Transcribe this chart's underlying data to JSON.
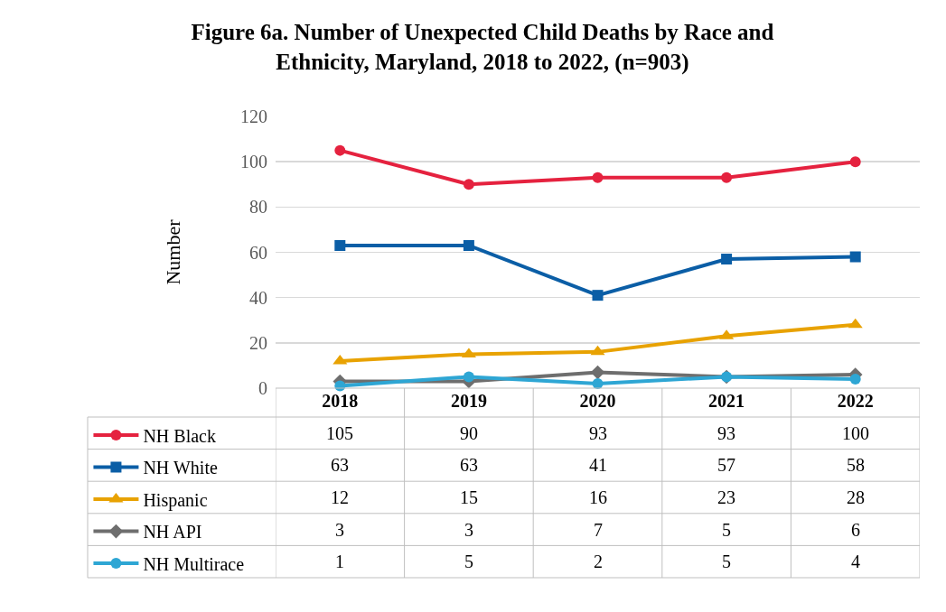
{
  "chart_data": {
    "type": "line",
    "title": "Figure 6a. Number of Unexpected Child Deaths by Race and Ethnicity, Maryland, 2018 to 2022, (n=903)",
    "ylabel": "Number",
    "categories": [
      "2018",
      "2019",
      "2020",
      "2021",
      "2022"
    ],
    "series": [
      {
        "name": "NH Black",
        "color": "#e5223f",
        "marker": "circle",
        "values": [
          105,
          90,
          93,
          93,
          100
        ]
      },
      {
        "name": "NH White",
        "color": "#0b5ea6",
        "marker": "square",
        "values": [
          63,
          63,
          41,
          57,
          58
        ]
      },
      {
        "name": "Hispanic",
        "color": "#e8a202",
        "marker": "triangle",
        "values": [
          12,
          15,
          16,
          23,
          28
        ]
      },
      {
        "name": "NH API",
        "color": "#6e6e6e",
        "marker": "diamond",
        "values": [
          3,
          3,
          7,
          5,
          6
        ]
      },
      {
        "name": "NH Multirace",
        "color": "#2ea6d4",
        "marker": "circle",
        "values": [
          1,
          5,
          2,
          5,
          4
        ]
      }
    ],
    "ylim": [
      0,
      120
    ],
    "yticks": [
      0,
      20,
      40,
      60,
      80,
      100,
      120
    ],
    "grid": "y",
    "legend": "bottom left",
    "data_labels": true,
    "line_style": "solid"
  }
}
